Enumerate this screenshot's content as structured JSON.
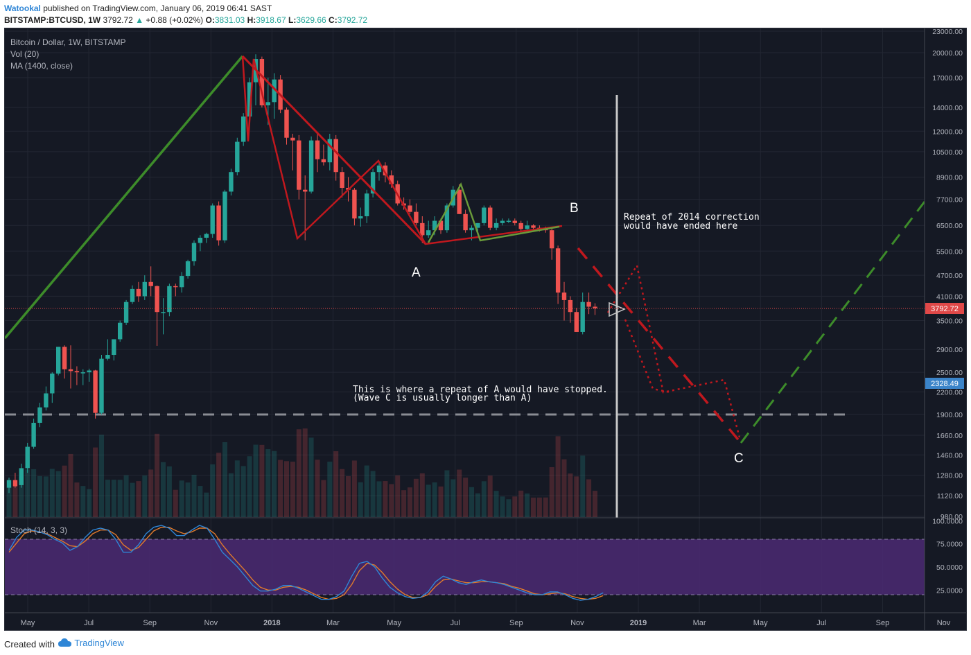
{
  "header": {
    "author": "Watookal",
    "published_text": "published on TradingView.com, January 06, 2019 06:41 SAST",
    "symbol": "BITSTAMP:BTCUSD, 1W",
    "last": "3792.72",
    "change": "+0.88 (+0.02%)",
    "o_label": "O:",
    "o": "3831.03",
    "h_label": "H:",
    "h": "3918.67",
    "l_label": "L:",
    "l": "3629.66",
    "c_label": "C:",
    "c": "3792.72",
    "up_arrow": "▲"
  },
  "legend": {
    "title": "Bitcoin / Dollar, 1W, BITSTAMP",
    "vol": "Vol (20)",
    "ma": "MA (1400, close)",
    "stoch": "Stoch (14, 3, 3)"
  },
  "annotations": {
    "label_a": "A",
    "label_b": "B",
    "label_c": "C",
    "note_2014_line1": "Repeat of 2014 correction",
    "note_2014_line2": "would have ended here",
    "note_repeat_line1": "This is where a repeat of A would have stopped.",
    "note_repeat_line2": "(Wave C is usually longer than A)"
  },
  "footer": {
    "created_with": "Created with",
    "brand": "TradingView"
  },
  "colors": {
    "background": "#151924",
    "up_candle": "#26a69a",
    "down_candle": "#ef5350",
    "impulse_line": "#3d8c2a",
    "correction_line": "#c0181e",
    "stoch_fill": "#4b2a73",
    "stoch_k": "#2f86d6",
    "stoch_d": "#e07a2c",
    "price_tag": "#e04848",
    "target_tag": "#3b84c9"
  },
  "chart_data": {
    "type": "candlestick",
    "timeframe": "1W",
    "price_axis": {
      "scale": "log",
      "ticks": [
        "23000.00",
        "20000.00",
        "17000.00",
        "14000.00",
        "12000.00",
        "10500.00",
        "8900.00",
        "7700.00",
        "6500.00",
        "5500.00",
        "4700.00",
        "4100.00",
        "3500.00",
        "2900.00",
        "2500.00",
        "2200.00",
        "1900.00",
        "1660.00",
        "1460.00",
        "1280.00",
        "1120.00",
        "980.00"
      ],
      "last_price_tag": "3792.72",
      "target_tag": "2328.49"
    },
    "stoch_axis": {
      "ticks": [
        "100.0000",
        "75.0000",
        "50.0000",
        "25.0000"
      ],
      "bands": [
        80,
        20
      ]
    },
    "time_axis": {
      "ticks": [
        "May",
        "Jul",
        "Sep",
        "Nov",
        "2018",
        "Mar",
        "May",
        "Jul",
        "Sep",
        "Nov",
        "2019",
        "Mar",
        "May",
        "Jul",
        "Sep",
        "Nov"
      ]
    },
    "candles": [
      {
        "o": 1180,
        "h": 1260,
        "l": 1140,
        "c": 1240
      },
      {
        "o": 1240,
        "h": 1300,
        "l": 1180,
        "c": 1190
      },
      {
        "o": 1200,
        "h": 1380,
        "l": 1180,
        "c": 1340
      },
      {
        "o": 1340,
        "h": 1580,
        "l": 1300,
        "c": 1540
      },
      {
        "o": 1540,
        "h": 1850,
        "l": 1520,
        "c": 1800
      },
      {
        "o": 1800,
        "h": 2050,
        "l": 1750,
        "c": 1990
      },
      {
        "o": 1990,
        "h": 2280,
        "l": 1950,
        "c": 2180
      },
      {
        "o": 2180,
        "h": 2500,
        "l": 2050,
        "c": 2480
      },
      {
        "o": 2480,
        "h": 2950,
        "l": 2450,
        "c": 2950
      },
      {
        "o": 2950,
        "h": 2980,
        "l": 2400,
        "c": 2550
      },
      {
        "o": 2550,
        "h": 2980,
        "l": 2250,
        "c": 2520
      },
      {
        "o": 2520,
        "h": 2600,
        "l": 2300,
        "c": 2500
      },
      {
        "o": 2500,
        "h": 2550,
        "l": 2300,
        "c": 2500
      },
      {
        "o": 2500,
        "h": 2560,
        "l": 2350,
        "c": 2530
      },
      {
        "o": 2530,
        "h": 2540,
        "l": 1850,
        "c": 1920
      },
      {
        "o": 1920,
        "h": 2800,
        "l": 1900,
        "c": 2730
      },
      {
        "o": 2730,
        "h": 3100,
        "l": 2700,
        "c": 2800
      },
      {
        "o": 2800,
        "h": 3100,
        "l": 2700,
        "c": 3100
      },
      {
        "o": 3100,
        "h": 3500,
        "l": 3050,
        "c": 3450
      },
      {
        "o": 3450,
        "h": 4000,
        "l": 3400,
        "c": 3950
      },
      {
        "o": 3950,
        "h": 4400,
        "l": 3900,
        "c": 4300
      },
      {
        "o": 4300,
        "h": 4500,
        "l": 3950,
        "c": 4100
      },
      {
        "o": 4100,
        "h": 4700,
        "l": 4000,
        "c": 4500
      },
      {
        "o": 4500,
        "h": 4980,
        "l": 4100,
        "c": 4380
      },
      {
        "o": 4380,
        "h": 4400,
        "l": 2970,
        "c": 3700
      },
      {
        "o": 3700,
        "h": 4050,
        "l": 3200,
        "c": 3700
      },
      {
        "o": 3700,
        "h": 4450,
        "l": 3600,
        "c": 4380
      },
      {
        "o": 4380,
        "h": 4450,
        "l": 4100,
        "c": 4350
      },
      {
        "o": 4350,
        "h": 4800,
        "l": 4200,
        "c": 4680
      },
      {
        "o": 4680,
        "h": 5200,
        "l": 4600,
        "c": 5150
      },
      {
        "o": 5150,
        "h": 5900,
        "l": 5000,
        "c": 5800
      },
      {
        "o": 5800,
        "h": 6100,
        "l": 5500,
        "c": 6000
      },
      {
        "o": 6000,
        "h": 6200,
        "l": 5800,
        "c": 6150
      },
      {
        "o": 6150,
        "h": 7500,
        "l": 6000,
        "c": 7400
      },
      {
        "o": 7400,
        "h": 7600,
        "l": 5700,
        "c": 5900
      },
      {
        "o": 5900,
        "h": 8200,
        "l": 5800,
        "c": 8100
      },
      {
        "o": 8100,
        "h": 9400,
        "l": 7900,
        "c": 9200
      },
      {
        "o": 9200,
        "h": 11500,
        "l": 9000,
        "c": 11200
      },
      {
        "o": 11200,
        "h": 13500,
        "l": 10900,
        "c": 13200
      },
      {
        "o": 13200,
        "h": 17000,
        "l": 13000,
        "c": 16500
      },
      {
        "o": 16500,
        "h": 19800,
        "l": 14200,
        "c": 19200
      },
      {
        "o": 19200,
        "h": 19500,
        "l": 14000,
        "c": 14200
      },
      {
        "o": 14200,
        "h": 17000,
        "l": 12500,
        "c": 14500
      },
      {
        "o": 14500,
        "h": 17500,
        "l": 13000,
        "c": 16800
      },
      {
        "o": 16800,
        "h": 17300,
        "l": 13500,
        "c": 13800
      },
      {
        "o": 13800,
        "h": 14000,
        "l": 11000,
        "c": 11500
      },
      {
        "o": 11500,
        "h": 11800,
        "l": 9300,
        "c": 11300
      },
      {
        "o": 11300,
        "h": 11700,
        "l": 7700,
        "c": 8200
      },
      {
        "o": 8200,
        "h": 9000,
        "l": 5900,
        "c": 8100
      },
      {
        "o": 8100,
        "h": 11600,
        "l": 8000,
        "c": 11300
      },
      {
        "o": 11300,
        "h": 11800,
        "l": 9200,
        "c": 10000
      },
      {
        "o": 10000,
        "h": 11000,
        "l": 9600,
        "c": 9800
      },
      {
        "o": 9800,
        "h": 11800,
        "l": 9300,
        "c": 11400
      },
      {
        "o": 11400,
        "h": 11700,
        "l": 8700,
        "c": 9200
      },
      {
        "o": 9200,
        "h": 9500,
        "l": 7800,
        "c": 8300
      },
      {
        "o": 8300,
        "h": 8900,
        "l": 7600,
        "c": 8200
      },
      {
        "o": 8200,
        "h": 8300,
        "l": 6500,
        "c": 6800
      },
      {
        "o": 6800,
        "h": 7300,
        "l": 6450,
        "c": 6900
      },
      {
        "o": 6900,
        "h": 8200,
        "l": 6600,
        "c": 8000
      },
      {
        "o": 8000,
        "h": 9400,
        "l": 7800,
        "c": 9200
      },
      {
        "o": 9200,
        "h": 9900,
        "l": 8700,
        "c": 9600
      },
      {
        "o": 9600,
        "h": 9800,
        "l": 8600,
        "c": 9000
      },
      {
        "o": 9000,
        "h": 9300,
        "l": 8300,
        "c": 8500
      },
      {
        "o": 8500,
        "h": 8700,
        "l": 7400,
        "c": 7500
      },
      {
        "o": 7500,
        "h": 7800,
        "l": 7200,
        "c": 7400
      },
      {
        "o": 7400,
        "h": 7700,
        "l": 7000,
        "c": 7100
      },
      {
        "o": 7100,
        "h": 7500,
        "l": 6500,
        "c": 6600
      },
      {
        "o": 6600,
        "h": 6900,
        "l": 5800,
        "c": 6100
      },
      {
        "o": 6100,
        "h": 6700,
        "l": 6000,
        "c": 6300
      },
      {
        "o": 6300,
        "h": 6900,
        "l": 6100,
        "c": 6700
      },
      {
        "o": 6700,
        "h": 6800,
        "l": 6150,
        "c": 6300
      },
      {
        "o": 6300,
        "h": 7500,
        "l": 6200,
        "c": 7400
      },
      {
        "o": 7400,
        "h": 8400,
        "l": 7300,
        "c": 8200
      },
      {
        "o": 8200,
        "h": 8500,
        "l": 7000,
        "c": 7000
      },
      {
        "o": 7000,
        "h": 7200,
        "l": 6200,
        "c": 6300
      },
      {
        "o": 6300,
        "h": 6500,
        "l": 5900,
        "c": 6400
      },
      {
        "o": 6400,
        "h": 6600,
        "l": 6200,
        "c": 6600
      },
      {
        "o": 6600,
        "h": 7400,
        "l": 6500,
        "c": 7300
      },
      {
        "o": 7300,
        "h": 7400,
        "l": 6300,
        "c": 6400
      },
      {
        "o": 6400,
        "h": 6800,
        "l": 6300,
        "c": 6600
      },
      {
        "o": 6600,
        "h": 6800,
        "l": 6500,
        "c": 6700
      },
      {
        "o": 6700,
        "h": 6800,
        "l": 6600,
        "c": 6700
      },
      {
        "o": 6700,
        "h": 6800,
        "l": 6500,
        "c": 6600
      },
      {
        "o": 6600,
        "h": 6700,
        "l": 6200,
        "c": 6350
      },
      {
        "o": 6350,
        "h": 6700,
        "l": 6300,
        "c": 6500
      },
      {
        "o": 6500,
        "h": 6550,
        "l": 6300,
        "c": 6400
      },
      {
        "o": 6400,
        "h": 6500,
        "l": 6250,
        "c": 6350
      },
      {
        "o": 6350,
        "h": 6450,
        "l": 6200,
        "c": 6300
      },
      {
        "o": 6300,
        "h": 6400,
        "l": 5200,
        "c": 5600
      },
      {
        "o": 5600,
        "h": 5700,
        "l": 3900,
        "c": 4200
      },
      {
        "o": 4200,
        "h": 4500,
        "l": 3500,
        "c": 4000
      },
      {
        "o": 4000,
        "h": 4100,
        "l": 3450,
        "c": 3700
      },
      {
        "o": 3700,
        "h": 3800,
        "l": 3250,
        "c": 3250
      },
      {
        "o": 3250,
        "h": 4200,
        "l": 3200,
        "c": 3950
      },
      {
        "o": 3950,
        "h": 4200,
        "l": 3650,
        "c": 3831
      },
      {
        "o": 3831,
        "h": 3919,
        "l": 3630,
        "c": 3793
      }
    ],
    "stoch_k": [
      68,
      82,
      90,
      90,
      88,
      85,
      80,
      76,
      68,
      72,
      82,
      90,
      92,
      90,
      80,
      66,
      66,
      74,
      86,
      93,
      95,
      92,
      84,
      84,
      90,
      95,
      92,
      80,
      66,
      58,
      50,
      40,
      30,
      24,
      24,
      26,
      30,
      30,
      27,
      23,
      19,
      15,
      15,
      18,
      24,
      40,
      54,
      56,
      50,
      38,
      28,
      22,
      18,
      16,
      17,
      23,
      34,
      40,
      37,
      33,
      31,
      34,
      36,
      34,
      33,
      31,
      28,
      25,
      22,
      20,
      20,
      23,
      23,
      20,
      16,
      14,
      15,
      18,
      22
    ],
    "stoch_d": [
      66,
      76,
      86,
      89,
      88,
      86,
      82,
      78,
      73,
      72,
      78,
      86,
      90,
      90,
      85,
      74,
      68,
      71,
      80,
      89,
      93,
      93,
      89,
      86,
      88,
      92,
      92,
      86,
      74,
      64,
      55,
      46,
      36,
      28,
      25,
      25,
      28,
      29,
      28,
      25,
      21,
      17,
      15,
      16,
      20,
      31,
      46,
      54,
      52,
      44,
      34,
      26,
      20,
      17,
      17,
      20,
      29,
      36,
      37,
      35,
      33,
      33,
      34,
      34,
      33,
      32,
      29,
      27,
      24,
      21,
      20,
      21,
      22,
      21,
      18,
      16,
      15,
      16,
      19
    ]
  }
}
